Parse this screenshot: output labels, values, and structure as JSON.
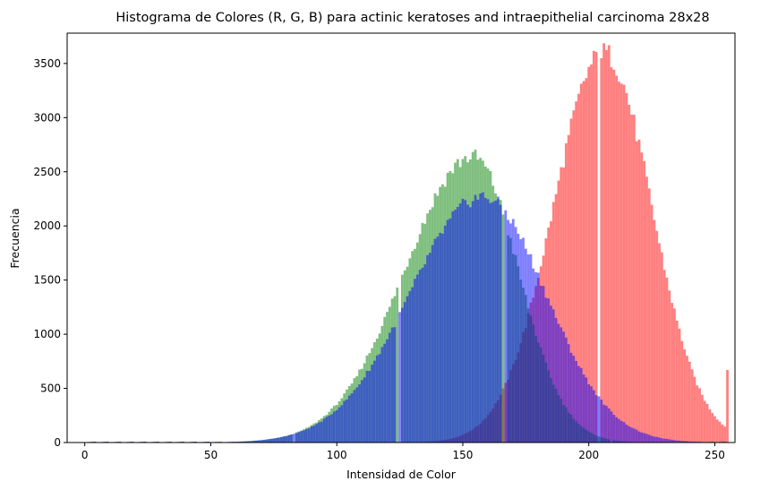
{
  "chart_data": {
    "type": "bar",
    "title": "Histograma de Colores (R, G, B) para actinic keratoses and intraepithelial carcinoma 28x28",
    "xlabel": "Intensidad de Color",
    "ylabel": "Frecuencia",
    "xlim": [
      -7,
      258
    ],
    "ylim": [
      0,
      3780
    ],
    "xticks": [
      0,
      50,
      100,
      150,
      200,
      250
    ],
    "yticks": [
      0,
      500,
      1000,
      1500,
      2000,
      2500,
      3000,
      3500
    ],
    "grid": false,
    "legend": "none",
    "bins": 256,
    "series": [
      {
        "channel": "red",
        "color": "#ff0000",
        "opacity": 0.5,
        "shape": "gaussian",
        "peak_x": 206,
        "peak_y": 3600,
        "left_sigma": 20,
        "right_sigma": 19,
        "notable_bars": [
          {
            "x": 204,
            "y": 0
          },
          {
            "x": 255,
            "y": 670
          }
        ]
      },
      {
        "channel": "green",
        "color": "#008000",
        "opacity": 0.5,
        "shape": "gaussian",
        "peak_x": 154,
        "peak_y": 2640,
        "left_sigma": 27,
        "right_sigma": 18,
        "notable_bars": [
          {
            "x": 83,
            "y": 0
          },
          {
            "x": 125,
            "y": 0
          },
          {
            "x": 167,
            "y": 0
          },
          {
            "x": 209,
            "y": 0
          }
        ]
      },
      {
        "channel": "blue",
        "color": "#0000ff",
        "opacity": 0.5,
        "shape": "gaussian",
        "peak_x": 158,
        "peak_y": 2270,
        "left_sigma": 29,
        "right_sigma": 25,
        "notable_bars": [
          {
            "x": 124,
            "y": 0
          },
          {
            "x": 166,
            "y": 0
          }
        ]
      }
    ]
  }
}
